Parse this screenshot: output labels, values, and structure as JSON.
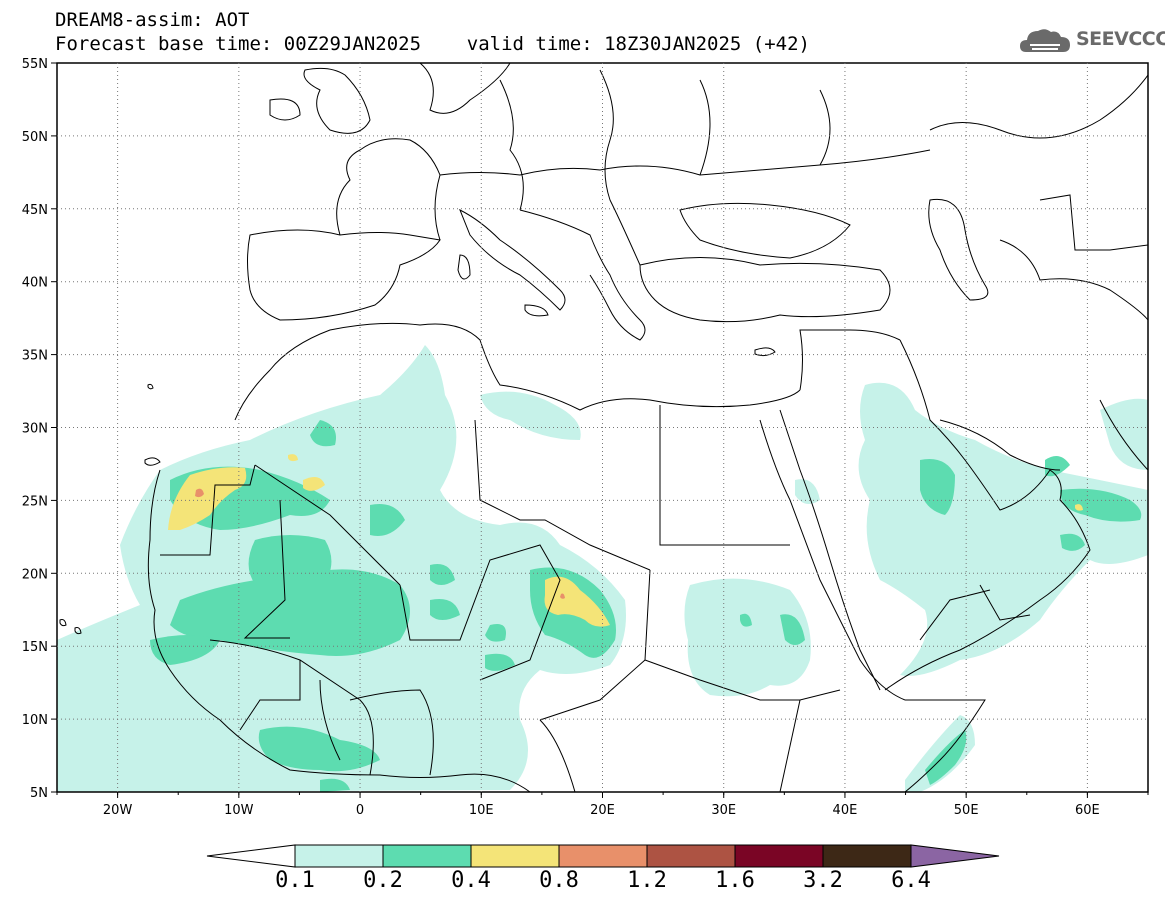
{
  "title": {
    "line1": "DREAM8-assim: AOT",
    "line2": "Forecast base time: 00Z29JAN2025    valid time: 18Z30JAN2025 (+42)"
  },
  "logo": {
    "text": "SEEVCCC",
    "icon": "cloud-icon"
  },
  "map": {
    "lon_range": [
      -25,
      65
    ],
    "lat_range": [
      5,
      55
    ],
    "lon_ticks": [
      "20W",
      "10W",
      "0",
      "10E",
      "20E",
      "30E",
      "40E",
      "50E",
      "60E"
    ],
    "lat_ticks": [
      "55N",
      "50N",
      "45N",
      "40N",
      "35N",
      "30N",
      "25N",
      "20N",
      "15N",
      "10N",
      "5N"
    ]
  },
  "colorbar": {
    "labels": [
      "0.1",
      "0.2",
      "0.4",
      "0.8",
      "1.2",
      "1.6",
      "3.2",
      "6.4"
    ],
    "colors": [
      "#c6f2e9",
      "#5ddcb0",
      "#f4e478",
      "#e8906a",
      "#ad5343",
      "#7a0525",
      "#3d2816"
    ],
    "low_extend_color": "#ffffff",
    "high_extend_color": "#8b65a3"
  },
  "fields": {
    "colors": {
      "c1": "#c6f2e9",
      "c2": "#5ddcb0",
      "c3": "#f4e478",
      "c4": "#e8906a"
    }
  }
}
